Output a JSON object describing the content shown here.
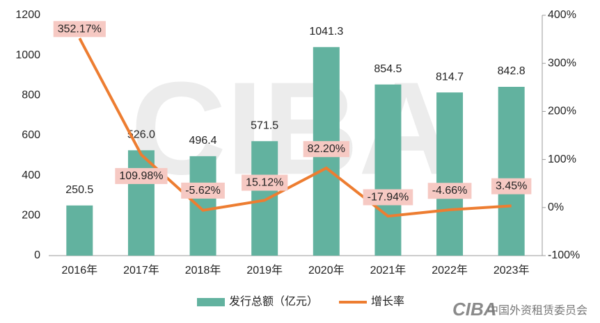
{
  "chart_data": {
    "type": "combo",
    "categories": [
      "2016年",
      "2017年",
      "2018年",
      "2019年",
      "2020年",
      "2021年",
      "2022年",
      "2023年"
    ],
    "series": [
      {
        "name": "发行总额（亿元）",
        "type": "bar",
        "color": "#62b29f",
        "values": [
          250.5,
          526.0,
          496.4,
          571.5,
          1041.3,
          854.5,
          814.7,
          842.8
        ],
        "value_labels": [
          "250.5",
          "526.0",
          "496.4",
          "571.5",
          "1041.3",
          "854.5",
          "814.7",
          "842.8"
        ]
      },
      {
        "name": "增长率",
        "type": "line",
        "axis": "y2",
        "color": "#ed7d31",
        "values": [
          352.17,
          109.98,
          -5.62,
          15.12,
          82.2,
          -17.94,
          -4.66,
          3.45
        ],
        "value_labels": [
          "352.17%",
          "109.98%",
          "-5.62%",
          "15.12%",
          "82.20%",
          "-17.94%",
          "-4.66%",
          "3.45%"
        ]
      }
    ],
    "ylim": [
      0,
      1200
    ],
    "yticks": [
      0,
      200,
      400,
      600,
      800,
      1000,
      1200
    ],
    "y2lim": [
      -100,
      400
    ],
    "y2ticks": [
      {
        "value": -100,
        "label": "-100%"
      },
      {
        "value": 0,
        "label": "0%"
      },
      {
        "value": 100,
        "label": "100%"
      },
      {
        "value": 200,
        "label": "200%"
      },
      {
        "value": 300,
        "label": "300%"
      },
      {
        "value": 400,
        "label": "400%"
      }
    ],
    "legend": "bottom",
    "watermark": "CIBA",
    "source_logo": "CIBA",
    "source_text": "中国外资租赁委员会"
  }
}
